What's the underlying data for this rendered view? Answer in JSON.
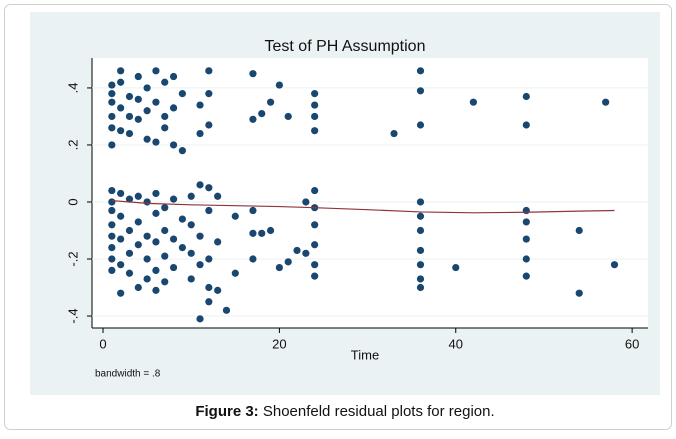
{
  "chart_data": {
    "type": "scatter",
    "title": "Test of PH Assumption",
    "x_label": "Time",
    "note": "bandwidth = .8",
    "caption_label": "Figure 3:",
    "caption": "Shoenfeld residual plots for region.",
    "color": "#1a476f",
    "x": [
      1,
      1,
      1,
      1,
      1,
      1,
      1,
      1,
      1,
      1,
      1,
      1,
      1,
      1,
      2,
      2,
      2,
      2,
      2,
      2,
      2,
      2,
      2,
      3,
      3,
      3,
      3,
      3,
      3,
      3,
      4,
      4,
      4,
      4,
      4,
      4,
      4,
      5,
      5,
      5,
      5,
      5,
      5,
      5,
      6,
      6,
      6,
      6,
      6,
      6,
      6,
      6,
      7,
      7,
      7,
      7,
      7,
      7,
      7,
      8,
      8,
      8,
      8,
      8,
      8,
      9,
      9,
      9,
      9,
      10,
      10,
      10,
      10,
      11,
      11,
      11,
      11,
      11,
      11,
      12,
      12,
      12,
      12,
      12,
      12,
      12,
      12,
      13,
      13,
      13,
      14,
      15,
      15,
      17,
      17,
      17,
      17,
      17,
      18,
      18,
      19,
      19,
      20,
      20,
      21,
      21,
      22,
      23,
      23,
      24,
      24,
      24,
      24,
      24,
      24,
      24,
      24,
      24,
      24,
      33,
      36,
      36,
      36,
      36,
      36,
      36,
      36,
      36,
      36,
      36,
      40,
      42,
      48,
      48,
      48,
      48,
      48,
      48,
      48,
      54,
      54,
      57,
      58
    ],
    "values": [
      0.41,
      0.38,
      0.35,
      0.3,
      0.26,
      0.2,
      0.04,
      0,
      -0.03,
      -0.08,
      -0.12,
      -0.16,
      -0.2,
      -0.24,
      0.46,
      0.42,
      0.33,
      0.25,
      0.03,
      -0.05,
      -0.13,
      -0.22,
      -0.32,
      0.37,
      0.3,
      0.24,
      0.01,
      -0.1,
      -0.18,
      -0.25,
      0.44,
      0.36,
      0.29,
      0.02,
      -0.07,
      -0.15,
      -0.3,
      0.4,
      0.32,
      0.22,
      0,
      -0.12,
      -0.2,
      -0.27,
      0.46,
      0.35,
      0.21,
      0.03,
      -0.04,
      -0.14,
      -0.24,
      -0.31,
      0.42,
      0.3,
      0.26,
      -0.02,
      -0.1,
      -0.19,
      -0.28,
      0.44,
      0.33,
      0.2,
      0.01,
      -0.13,
      -0.23,
      0.38,
      0.18,
      -0.06,
      -0.16,
      0.02,
      -0.08,
      -0.18,
      -0.27,
      0.34,
      0.24,
      0.06,
      -0.12,
      -0.22,
      -0.41,
      0.46,
      0.38,
      0.27,
      0.05,
      -0.03,
      -0.2,
      -0.3,
      -0.35,
      0.02,
      -0.14,
      -0.31,
      -0.38,
      -0.05,
      -0.25,
      0.45,
      0.29,
      -0.03,
      -0.11,
      -0.2,
      0.31,
      -0.11,
      0.35,
      -0.1,
      0.41,
      -0.23,
      0.3,
      -0.21,
      -0.17,
      0,
      -0.18,
      0.38,
      0.34,
      0.3,
      0.25,
      0.04,
      -0.02,
      -0.08,
      -0.15,
      -0.22,
      -0.26,
      0.24,
      0.46,
      0.39,
      0.27,
      0,
      -0.05,
      -0.1,
      -0.17,
      -0.22,
      -0.27,
      -0.3,
      -0.23,
      0.35,
      0.37,
      0.27,
      -0.03,
      -0.07,
      -0.13,
      -0.2,
      -0.26,
      -0.1,
      -0.32,
      0.35,
      -0.22
    ],
    "lowess": {
      "color": "#90353b",
      "x": [
        1,
        5,
        10,
        15,
        20,
        24,
        30,
        36,
        42,
        48,
        54,
        58
      ],
      "values": [
        0.005,
        -0.005,
        -0.01,
        -0.013,
        -0.016,
        -0.02,
        -0.027,
        -0.035,
        -0.038,
        -0.036,
        -0.032,
        -0.03
      ]
    },
    "xlim": [
      -1.25,
      61.8
    ],
    "ylim": [
      -0.442,
      0.505
    ],
    "xticks": [
      0,
      20,
      40,
      60
    ],
    "yticks": [
      {
        "value": -0.4,
        "label": "-.4"
      },
      {
        "value": -0.2,
        "label": "-.2"
      },
      {
        "value": 0,
        "label": "0"
      },
      {
        "value": 0.2,
        "label": ".2"
      },
      {
        "value": 0.4,
        "label": ".4"
      }
    ],
    "grid": true
  }
}
